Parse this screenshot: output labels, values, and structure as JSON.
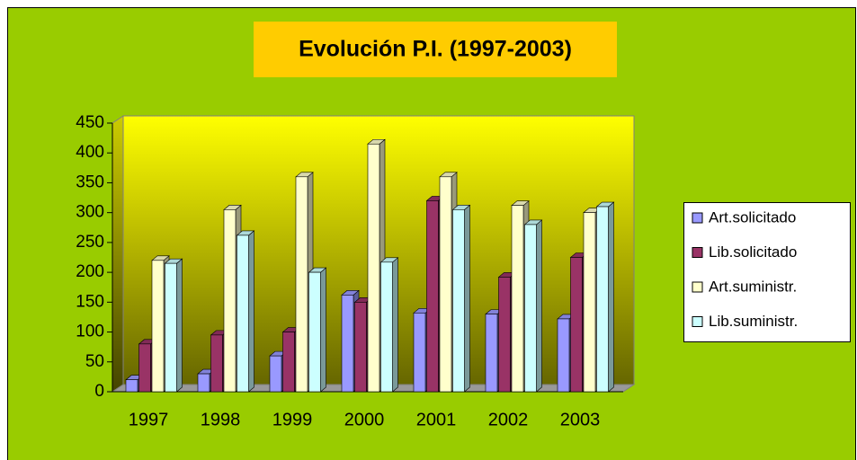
{
  "chart_data": {
    "type": "bar3d",
    "title": "Evolución P.I. (1997-2003)",
    "categories": [
      "1997",
      "1998",
      "1999",
      "2000",
      "2001",
      "2002",
      "2003"
    ],
    "series": [
      {
        "name": "Art.solicitado",
        "color": "#9999ff",
        "values": [
          20,
          30,
          60,
          162,
          132,
          130,
          122
        ]
      },
      {
        "name": "Lib.solicitado",
        "color": "#993366",
        "values": [
          80,
          95,
          100,
          150,
          320,
          192,
          225
        ]
      },
      {
        "name": "Art.suministr.",
        "color": "#ffffcc",
        "values": [
          220,
          305,
          360,
          415,
          360,
          312,
          300
        ]
      },
      {
        "name": "Lib.suministr.",
        "color": "#ccffff",
        "values": [
          215,
          262,
          200,
          217,
          305,
          280,
          310
        ]
      }
    ],
    "ylim": [
      0,
      450
    ],
    "yticks": [
      0,
      50,
      100,
      150,
      200,
      250,
      300,
      350,
      400,
      450
    ],
    "grid": false,
    "legend": "right"
  }
}
